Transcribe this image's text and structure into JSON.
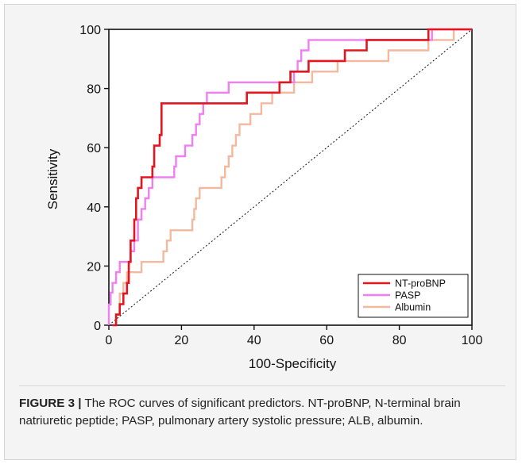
{
  "chart_data": {
    "type": "line",
    "title": "",
    "xlabel": "100-Specificity",
    "ylabel": "Sensitivity",
    "xlim": [
      0,
      100
    ],
    "ylim": [
      0,
      100
    ],
    "xticks": [
      "0",
      "20",
      "40",
      "60",
      "80",
      "100"
    ],
    "yticks": [
      "0",
      "20",
      "40",
      "60",
      "80",
      "100"
    ],
    "grid": false,
    "legend_position": "bottom-right",
    "reference_line": "diagonal",
    "series": [
      {
        "name": "NT-proBNP",
        "color": "#e3161f",
        "points": [
          [
            1,
            0
          ],
          [
            2,
            0
          ],
          [
            2,
            3.6
          ],
          [
            3,
            3.6
          ],
          [
            3,
            7.1
          ],
          [
            4,
            7.1
          ],
          [
            4,
            10.7
          ],
          [
            5,
            10.7
          ],
          [
            5,
            14.3
          ],
          [
            5.5,
            14.3
          ],
          [
            5.5,
            21.4
          ],
          [
            6,
            21.4
          ],
          [
            6,
            28.6
          ],
          [
            7,
            28.6
          ],
          [
            7,
            35.7
          ],
          [
            7.5,
            35.7
          ],
          [
            7.5,
            42.9
          ],
          [
            8,
            42.9
          ],
          [
            8,
            46.4
          ],
          [
            9,
            46.4
          ],
          [
            9,
            50
          ],
          [
            12,
            50
          ],
          [
            12,
            53.6
          ],
          [
            12.5,
            53.6
          ],
          [
            12.5,
            60.7
          ],
          [
            14,
            60.7
          ],
          [
            14,
            64.3
          ],
          [
            14.5,
            64.3
          ],
          [
            14.5,
            75
          ],
          [
            38,
            75
          ],
          [
            38,
            78.6
          ],
          [
            47,
            78.6
          ],
          [
            47,
            82.1
          ],
          [
            50,
            82.1
          ],
          [
            50,
            85.7
          ],
          [
            55,
            85.7
          ],
          [
            55,
            89.3
          ],
          [
            65,
            89.3
          ],
          [
            65,
            92.9
          ],
          [
            71,
            92.9
          ],
          [
            71,
            96.4
          ],
          [
            88,
            96.4
          ],
          [
            88,
            100
          ],
          [
            100,
            100
          ]
        ]
      },
      {
        "name": "PASP",
        "color": "#f07ef2",
        "points": [
          [
            0,
            0
          ],
          [
            0,
            7
          ],
          [
            0.5,
            7
          ],
          [
            0.5,
            11
          ],
          [
            1,
            11
          ],
          [
            1,
            14.3
          ],
          [
            2,
            14.3
          ],
          [
            2,
            17.9
          ],
          [
            3,
            17.9
          ],
          [
            3,
            21.4
          ],
          [
            6,
            21.4
          ],
          [
            6,
            25
          ],
          [
            7,
            25
          ],
          [
            7,
            28.6
          ],
          [
            8,
            28.6
          ],
          [
            8,
            35.7
          ],
          [
            9,
            35.7
          ],
          [
            9,
            39.3
          ],
          [
            10,
            39.3
          ],
          [
            10,
            42.9
          ],
          [
            11,
            42.9
          ],
          [
            11,
            46.4
          ],
          [
            12,
            46.4
          ],
          [
            12,
            50
          ],
          [
            18,
            50
          ],
          [
            18,
            53.6
          ],
          [
            18.5,
            53.6
          ],
          [
            18.5,
            57.1
          ],
          [
            21,
            57.1
          ],
          [
            21,
            60.7
          ],
          [
            23,
            60.7
          ],
          [
            23,
            64.3
          ],
          [
            24,
            64.3
          ],
          [
            24,
            67.9
          ],
          [
            25,
            67.9
          ],
          [
            25,
            71.4
          ],
          [
            26,
            71.4
          ],
          [
            26,
            75
          ],
          [
            27,
            75
          ],
          [
            27,
            78.6
          ],
          [
            33,
            78.6
          ],
          [
            33,
            82.1
          ],
          [
            51,
            82.1
          ],
          [
            51,
            85.7
          ],
          [
            52,
            85.7
          ],
          [
            52,
            89.3
          ],
          [
            53,
            89.3
          ],
          [
            53,
            92.9
          ],
          [
            55,
            92.9
          ],
          [
            55,
            96.4
          ],
          [
            89,
            96.4
          ],
          [
            89,
            100
          ],
          [
            100,
            100
          ]
        ]
      },
      {
        "name": "Albumin",
        "color": "#f4b89f",
        "points": [
          [
            1,
            0
          ],
          [
            2,
            0
          ],
          [
            2,
            3.6
          ],
          [
            3,
            3.6
          ],
          [
            3,
            10.7
          ],
          [
            4,
            10.7
          ],
          [
            4,
            14.3
          ],
          [
            5,
            14.3
          ],
          [
            5,
            17.9
          ],
          [
            9,
            17.9
          ],
          [
            9,
            21.4
          ],
          [
            15,
            21.4
          ],
          [
            15,
            25
          ],
          [
            16,
            25
          ],
          [
            16,
            28.6
          ],
          [
            17,
            28.6
          ],
          [
            17,
            32.1
          ],
          [
            23,
            32.1
          ],
          [
            23,
            35.7
          ],
          [
            23.5,
            35.7
          ],
          [
            23.5,
            39.3
          ],
          [
            24,
            39.3
          ],
          [
            24,
            42.9
          ],
          [
            25,
            42.9
          ],
          [
            25,
            46.4
          ],
          [
            31,
            46.4
          ],
          [
            31,
            50
          ],
          [
            32,
            50
          ],
          [
            32,
            53.6
          ],
          [
            33,
            53.6
          ],
          [
            33,
            57.1
          ],
          [
            34,
            57.1
          ],
          [
            34,
            60.7
          ],
          [
            35,
            60.7
          ],
          [
            35,
            64.3
          ],
          [
            36,
            64.3
          ],
          [
            36,
            67.9
          ],
          [
            39,
            67.9
          ],
          [
            39,
            71.4
          ],
          [
            42,
            71.4
          ],
          [
            42,
            75
          ],
          [
            45,
            75
          ],
          [
            45,
            78.6
          ],
          [
            51,
            78.6
          ],
          [
            51,
            82.1
          ],
          [
            56,
            82.1
          ],
          [
            56,
            85.7
          ],
          [
            63,
            85.7
          ],
          [
            63,
            89.3
          ],
          [
            77,
            89.3
          ],
          [
            77,
            92.9
          ],
          [
            88,
            92.9
          ],
          [
            88,
            96.4
          ],
          [
            95,
            96.4
          ],
          [
            95,
            100
          ],
          [
            100,
            100
          ]
        ]
      }
    ]
  },
  "caption": {
    "label": "FIGURE 3 |",
    "text": " The ROC curves of significant predictors. NT-proBNP, N-terminal brain natriuretic peptide; PASP, pulmonary artery systolic pressure; ALB, albumin."
  }
}
